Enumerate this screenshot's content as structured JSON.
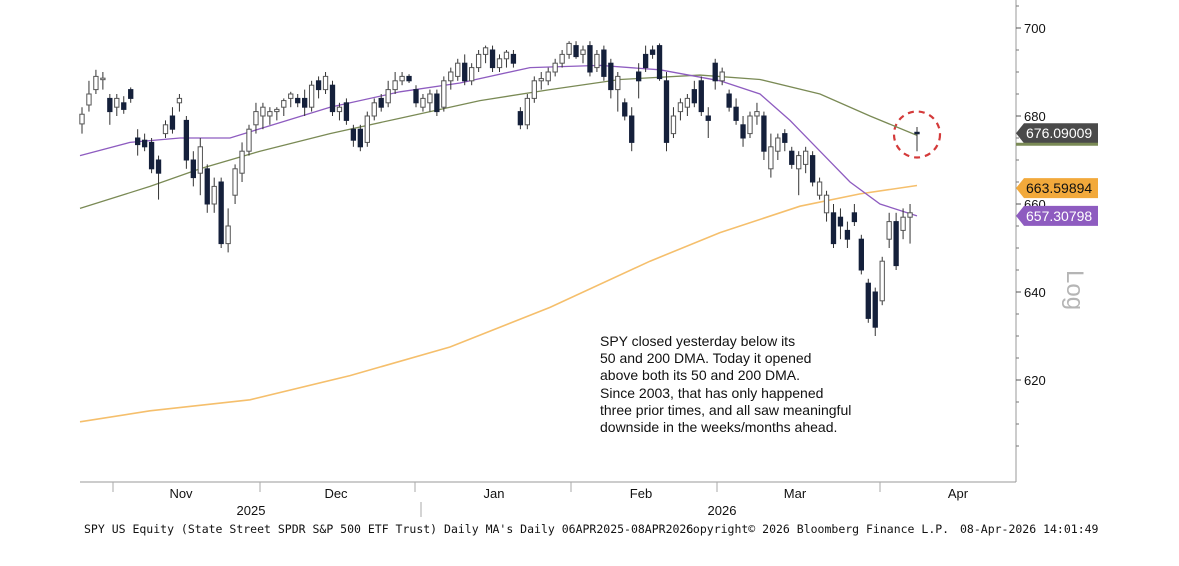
{
  "chart_data": {
    "type": "candlestick",
    "ticker": "SPY US Equity",
    "y_axis": {
      "ticks": [
        620,
        640,
        660,
        680,
        700
      ],
      "range": [
        600,
        705
      ],
      "side": "right"
    },
    "x_axis": {
      "months": [
        "Nov",
        "Dec",
        "Jan",
        "Feb",
        "Mar",
        "Apr"
      ],
      "years": [
        "2025",
        "2026"
      ]
    },
    "last_values": {
      "price": "676.09009",
      "ma_200": "663.59894",
      "ma_20": "657.30798"
    },
    "series_colors": {
      "price": "#555555",
      "ma_200": "#f2a93b",
      "ma_20": "#8e5cc0",
      "ma_50": "#7a8a55"
    },
    "candles": [
      {
        "date": "2025-10-16",
        "o": 678.2,
        "h": 682.0,
        "l": 676.0,
        "c": 680.4
      },
      {
        "date": "2025-10-17",
        "o": 682.5,
        "h": 688.0,
        "l": 681.0,
        "c": 685.0
      },
      {
        "date": "2025-10-20",
        "o": 686.0,
        "h": 690.5,
        "l": 685.0,
        "c": 689.0
      },
      {
        "date": "2025-10-21",
        "o": 688.5,
        "h": 690.0,
        "l": 686.0,
        "c": 688.6
      },
      {
        "date": "2025-10-22",
        "o": 684.0,
        "h": 685.0,
        "l": 678.0,
        "c": 681.0
      },
      {
        "date": "2025-10-23",
        "o": 682.0,
        "h": 685.0,
        "l": 680.0,
        "c": 684.0
      },
      {
        "date": "2025-10-24",
        "o": 683.0,
        "h": 684.5,
        "l": 680.5,
        "c": 681.5
      },
      {
        "date": "2025-10-27",
        "o": 686.0,
        "h": 686.5,
        "l": 683.0,
        "c": 684.0
      },
      {
        "date": "2025-10-28",
        "o": 675.0,
        "h": 677.0,
        "l": 671.0,
        "c": 673.5
      },
      {
        "date": "2025-10-29",
        "o": 674.5,
        "h": 676.0,
        "l": 672.0,
        "c": 673.0
      },
      {
        "date": "2025-10-30",
        "o": 674.0,
        "h": 675.0,
        "l": 667.0,
        "c": 668.0
      },
      {
        "date": "2025-10-31",
        "o": 670.0,
        "h": 671.0,
        "l": 661.0,
        "c": 667.0
      },
      {
        "date": "2025-11-03",
        "o": 676.0,
        "h": 679.0,
        "l": 675.0,
        "c": 678.0
      },
      {
        "date": "2025-11-04",
        "o": 680.0,
        "h": 682.0,
        "l": 676.0,
        "c": 677.0
      },
      {
        "date": "2025-11-05",
        "o": 683.0,
        "h": 685.0,
        "l": 681.0,
        "c": 684.0
      },
      {
        "date": "2025-11-06",
        "o": 679.0,
        "h": 680.0,
        "l": 668.0,
        "c": 670.0
      },
      {
        "date": "2025-11-07",
        "o": 670.0,
        "h": 672.0,
        "l": 664.0,
        "c": 666.0
      },
      {
        "date": "2025-11-10",
        "o": 667.0,
        "h": 675.0,
        "l": 662.0,
        "c": 673.0
      },
      {
        "date": "2025-11-11",
        "o": 668.0,
        "h": 669.0,
        "l": 658.0,
        "c": 660.0
      },
      {
        "date": "2025-11-12",
        "o": 660.0,
        "h": 666.0,
        "l": 658.0,
        "c": 664.0
      },
      {
        "date": "2025-11-13",
        "o": 665.0,
        "h": 666.0,
        "l": 650.0,
        "c": 651.0
      },
      {
        "date": "2025-11-14",
        "o": 651.0,
        "h": 659.0,
        "l": 649.0,
        "c": 655.0
      },
      {
        "date": "2025-11-17",
        "o": 662.0,
        "h": 669.0,
        "l": 660.0,
        "c": 668.0
      },
      {
        "date": "2025-11-18",
        "o": 667.0,
        "h": 674.0,
        "l": 665.0,
        "c": 672.0
      },
      {
        "date": "2025-11-19",
        "o": 672.0,
        "h": 678.0,
        "l": 671.0,
        "c": 677.0
      },
      {
        "date": "2025-11-20",
        "o": 678.0,
        "h": 683.0,
        "l": 676.0,
        "c": 681.0
      },
      {
        "date": "2025-11-21",
        "o": 680.0,
        "h": 683.0,
        "l": 677.0,
        "c": 682.0
      },
      {
        "date": "2025-11-24",
        "o": 680.0,
        "h": 682.0,
        "l": 678.0,
        "c": 681.0
      },
      {
        "date": "2025-11-25",
        "o": 681.0,
        "h": 682.0,
        "l": 679.0,
        "c": 681.5
      },
      {
        "date": "2025-11-26",
        "o": 682.0,
        "h": 684.0,
        "l": 680.0,
        "c": 683.5
      },
      {
        "date": "2025-11-28",
        "o": 684.0,
        "h": 685.5,
        "l": 682.0,
        "c": 685.0
      },
      {
        "date": "2025-12-01",
        "o": 684.0,
        "h": 685.0,
        "l": 682.0,
        "c": 683.0
      },
      {
        "date": "2025-12-02",
        "o": 684.0,
        "h": 686.0,
        "l": 680.0,
        "c": 682.0
      },
      {
        "date": "2025-12-03",
        "o": 682.0,
        "h": 688.0,
        "l": 681.0,
        "c": 687.0
      },
      {
        "date": "2025-12-04",
        "o": 688.0,
        "h": 689.0,
        "l": 684.0,
        "c": 686.0
      },
      {
        "date": "2025-12-05",
        "o": 686.0,
        "h": 690.0,
        "l": 685.0,
        "c": 689.0
      },
      {
        "date": "2025-12-08",
        "o": 687.0,
        "h": 688.0,
        "l": 680.0,
        "c": 681.0
      },
      {
        "date": "2025-12-09",
        "o": 681.0,
        "h": 683.0,
        "l": 679.0,
        "c": 682.0
      },
      {
        "date": "2025-12-10",
        "o": 683.0,
        "h": 684.0,
        "l": 678.0,
        "c": 679.0
      },
      {
        "date": "2025-12-11",
        "o": 677.0,
        "h": 678.0,
        "l": 673.0,
        "c": 674.5
      },
      {
        "date": "2025-12-12",
        "o": 677.0,
        "h": 678.0,
        "l": 672.0,
        "c": 673.0
      },
      {
        "date": "2025-12-15",
        "o": 674.0,
        "h": 681.0,
        "l": 673.0,
        "c": 680.0
      },
      {
        "date": "2025-12-16",
        "o": 680.0,
        "h": 684.0,
        "l": 679.0,
        "c": 683.0
      },
      {
        "date": "2025-12-17",
        "o": 684.0,
        "h": 685.0,
        "l": 681.0,
        "c": 682.0
      },
      {
        "date": "2025-12-18",
        "o": 683.0,
        "h": 688.0,
        "l": 682.0,
        "c": 686.0
      },
      {
        "date": "2025-12-19",
        "o": 686.0,
        "h": 690.0,
        "l": 685.0,
        "c": 688.0
      },
      {
        "date": "2025-12-22",
        "o": 688.0,
        "h": 690.0,
        "l": 687.0,
        "c": 689.0
      },
      {
        "date": "2025-12-23",
        "o": 689.0,
        "h": 689.5,
        "l": 687.5,
        "c": 688.0
      },
      {
        "date": "2025-12-26",
        "o": 686.0,
        "h": 687.0,
        "l": 682.0,
        "c": 683.0
      },
      {
        "date": "2025-12-29",
        "o": 682.0,
        "h": 685.0,
        "l": 681.0,
        "c": 684.0
      },
      {
        "date": "2025-12-30",
        "o": 683.0,
        "h": 686.0,
        "l": 681.0,
        "c": 685.0
      },
      {
        "date": "2025-12-31",
        "o": 685.0,
        "h": 686.0,
        "l": 680.0,
        "c": 681.0
      },
      {
        "date": "2026-01-02",
        "o": 682.0,
        "h": 689.0,
        "l": 681.0,
        "c": 688.0
      },
      {
        "date": "2026-01-05",
        "o": 688.0,
        "h": 691.0,
        "l": 686.0,
        "c": 690.0
      },
      {
        "date": "2026-01-06",
        "o": 689.0,
        "h": 693.0,
        "l": 688.0,
        "c": 692.0
      },
      {
        "date": "2026-01-07",
        "o": 692.0,
        "h": 694.0,
        "l": 687.0,
        "c": 688.0
      },
      {
        "date": "2026-01-08",
        "o": 688.0,
        "h": 692.0,
        "l": 687.0,
        "c": 691.0
      },
      {
        "date": "2026-01-09",
        "o": 691.0,
        "h": 695.0,
        "l": 690.0,
        "c": 694.0
      },
      {
        "date": "2026-01-12",
        "o": 694.0,
        "h": 696.0,
        "l": 692.0,
        "c": 695.5
      },
      {
        "date": "2026-01-13",
        "o": 695.0,
        "h": 696.0,
        "l": 690.0,
        "c": 691.0
      },
      {
        "date": "2026-01-14",
        "o": 691.0,
        "h": 694.0,
        "l": 690.0,
        "c": 693.0
      },
      {
        "date": "2026-01-15",
        "o": 693.0,
        "h": 695.0,
        "l": 691.0,
        "c": 694.5
      },
      {
        "date": "2026-01-16",
        "o": 694.0,
        "h": 695.0,
        "l": 691.0,
        "c": 692.0
      },
      {
        "date": "2026-01-20",
        "o": 681.0,
        "h": 682.0,
        "l": 677.0,
        "c": 678.0
      },
      {
        "date": "2026-01-21",
        "o": 678.0,
        "h": 685.0,
        "l": 677.0,
        "c": 684.0
      },
      {
        "date": "2026-01-22",
        "o": 684.0,
        "h": 689.0,
        "l": 683.0,
        "c": 688.0
      },
      {
        "date": "2026-01-23",
        "o": 688.0,
        "h": 690.0,
        "l": 686.0,
        "c": 688.5
      },
      {
        "date": "2026-01-26",
        "o": 688.0,
        "h": 691.0,
        "l": 687.0,
        "c": 690.0
      },
      {
        "date": "2026-01-27",
        "o": 690.0,
        "h": 693.0,
        "l": 689.0,
        "c": 692.0
      },
      {
        "date": "2026-01-28",
        "o": 692.0,
        "h": 695.0,
        "l": 691.0,
        "c": 694.0
      },
      {
        "date": "2026-01-29",
        "o": 694.0,
        "h": 697.0,
        "l": 693.0,
        "c": 696.5
      },
      {
        "date": "2026-01-30",
        "o": 696.0,
        "h": 697.0,
        "l": 693.0,
        "c": 693.5
      },
      {
        "date": "2026-02-02",
        "o": 694.0,
        "h": 696.0,
        "l": 692.0,
        "c": 695.0
      },
      {
        "date": "2026-02-03",
        "o": 696.0,
        "h": 697.0,
        "l": 689.0,
        "c": 690.0
      },
      {
        "date": "2026-02-04",
        "o": 691.0,
        "h": 695.0,
        "l": 690.0,
        "c": 694.0
      },
      {
        "date": "2026-02-05",
        "o": 695.0,
        "h": 696.0,
        "l": 688.0,
        "c": 689.0
      },
      {
        "date": "2026-02-06",
        "o": 692.0,
        "h": 693.0,
        "l": 684.0,
        "c": 686.0
      },
      {
        "date": "2026-02-09",
        "o": 686.0,
        "h": 690.0,
        "l": 681.0,
        "c": 689.0
      },
      {
        "date": "2026-02-10",
        "o": 683.0,
        "h": 684.0,
        "l": 679.0,
        "c": 680.0
      },
      {
        "date": "2026-02-11",
        "o": 680.0,
        "h": 682.0,
        "l": 672.0,
        "c": 674.0
      },
      {
        "date": "2026-02-12",
        "o": 690.0,
        "h": 692.0,
        "l": 684.0,
        "c": 688.0
      },
      {
        "date": "2026-02-13",
        "o": 694.0,
        "h": 696.0,
        "l": 690.0,
        "c": 691.0
      },
      {
        "date": "2026-02-17",
        "o": 695.0,
        "h": 696.0,
        "l": 693.0,
        "c": 694.0
      },
      {
        "date": "2026-02-18",
        "o": 696.0,
        "h": 696.5,
        "l": 688.0,
        "c": 688.5
      },
      {
        "date": "2026-02-19",
        "o": 688.0,
        "h": 690.0,
        "l": 672.0,
        "c": 674.0
      },
      {
        "date": "2026-02-20",
        "o": 676.0,
        "h": 682.0,
        "l": 675.0,
        "c": 680.0
      },
      {
        "date": "2026-02-23",
        "o": 681.0,
        "h": 684.0,
        "l": 679.0,
        "c": 683.0
      },
      {
        "date": "2026-02-24",
        "o": 682.0,
        "h": 685.0,
        "l": 680.0,
        "c": 684.0
      },
      {
        "date": "2026-02-25",
        "o": 686.0,
        "h": 688.0,
        "l": 682.0,
        "c": 683.0
      },
      {
        "date": "2026-02-26",
        "o": 688.0,
        "h": 689.0,
        "l": 680.0,
        "c": 681.0
      },
      {
        "date": "2026-02-27",
        "o": 680.0,
        "h": 682.0,
        "l": 675.0,
        "c": 679.0
      },
      {
        "date": "2026-03-02",
        "o": 692.0,
        "h": 693.0,
        "l": 686.0,
        "c": 688.0
      },
      {
        "date": "2026-03-03",
        "o": 688.0,
        "h": 691.0,
        "l": 687.0,
        "c": 690.0
      },
      {
        "date": "2026-03-04",
        "o": 685.0,
        "h": 686.0,
        "l": 681.0,
        "c": 682.0
      },
      {
        "date": "2026-03-05",
        "o": 682.0,
        "h": 684.0,
        "l": 678.0,
        "c": 679.0
      },
      {
        "date": "2026-03-06",
        "o": 678.0,
        "h": 680.0,
        "l": 673.0,
        "c": 675.0
      },
      {
        "date": "2026-03-09",
        "o": 676.0,
        "h": 681.0,
        "l": 675.0,
        "c": 680.0
      },
      {
        "date": "2026-03-10",
        "o": 680.0,
        "h": 683.0,
        "l": 678.0,
        "c": 681.0
      },
      {
        "date": "2026-03-11",
        "o": 680.0,
        "h": 681.0,
        "l": 670.0,
        "c": 672.0
      },
      {
        "date": "2026-03-12",
        "o": 668.0,
        "h": 676.0,
        "l": 666.0,
        "c": 673.0
      },
      {
        "date": "2026-03-13",
        "o": 672.0,
        "h": 676.0,
        "l": 670.0,
        "c": 675.0
      },
      {
        "date": "2026-03-16",
        "o": 676.0,
        "h": 677.0,
        "l": 672.0,
        "c": 674.0
      },
      {
        "date": "2026-03-17",
        "o": 672.0,
        "h": 673.0,
        "l": 668.0,
        "c": 669.0
      },
      {
        "date": "2026-03-18",
        "o": 668.0,
        "h": 672.0,
        "l": 662.0,
        "c": 671.0
      },
      {
        "date": "2026-03-19",
        "o": 669.0,
        "h": 673.0,
        "l": 667.0,
        "c": 672.0
      },
      {
        "date": "2026-03-20",
        "o": 671.0,
        "h": 672.0,
        "l": 664.0,
        "c": 665.0
      },
      {
        "date": "2026-03-23",
        "o": 662.0,
        "h": 666.0,
        "l": 661.0,
        "c": 665.0
      },
      {
        "date": "2026-03-24",
        "o": 658.0,
        "h": 663.0,
        "l": 656.0,
        "c": 662.0
      },
      {
        "date": "2026-03-25",
        "o": 658.0,
        "h": 660.0,
        "l": 650.0,
        "c": 651.0
      },
      {
        "date": "2026-03-26",
        "o": 657.0,
        "h": 659.0,
        "l": 652.0,
        "c": 655.0
      },
      {
        "date": "2026-03-27",
        "o": 654.0,
        "h": 656.0,
        "l": 650.0,
        "c": 652.0
      },
      {
        "date": "2026-03-30",
        "o": 658.0,
        "h": 660.0,
        "l": 655.0,
        "c": 656.0
      },
      {
        "date": "2026-03-31",
        "o": 652.0,
        "h": 653.0,
        "l": 644.0,
        "c": 645.0
      },
      {
        "date": "2026-04-01",
        "o": 642.0,
        "h": 643.0,
        "l": 633.0,
        "c": 634.0
      },
      {
        "date": "2026-04-02",
        "o": 640.0,
        "h": 641.0,
        "l": 630.0,
        "c": 632.0
      },
      {
        "date": "2026-04-03",
        "o": 638.0,
        "h": 648.0,
        "l": 637.0,
        "c": 647.0
      },
      {
        "date": "2026-04-06",
        "o": 652.0,
        "h": 658.0,
        "l": 650.0,
        "c": 656.0
      },
      {
        "date": "2026-04-07",
        "o": 656.0,
        "h": 658.0,
        "l": 645.0,
        "c": 646.0
      },
      {
        "date": "2026-04-07b",
        "o": 654.0,
        "h": 659.0,
        "l": 652.0,
        "c": 657.0
      },
      {
        "date": "2026-04-07c",
        "o": 657.0,
        "h": 660.0,
        "l": 651.0,
        "c": 658.0
      },
      {
        "date": "2026-04-08",
        "o": 676.3,
        "h": 677.5,
        "l": 672.0,
        "c": 676.09
      }
    ]
  },
  "annotation": {
    "lines": [
      "SPY closed yesterday below its",
      "50 and 200 DMA. Today it opened",
      "above both its 50 and 200 DMA.",
      "Since 2003, that has only happened",
      "three prior times, and all saw meaningful",
      "downside in the weeks/months ahead."
    ]
  },
  "footer": {
    "description": "SPY US Equity (State Street SPDR S&P 500 ETF Trust) Daily MA's Daily 06APR2025-08APR2026",
    "copyright": "Copyright© 2026 Bloomberg Finance L.P.",
    "timestamp": "08-Apr-2026 14:01:49"
  },
  "axis_side_label": "Log"
}
